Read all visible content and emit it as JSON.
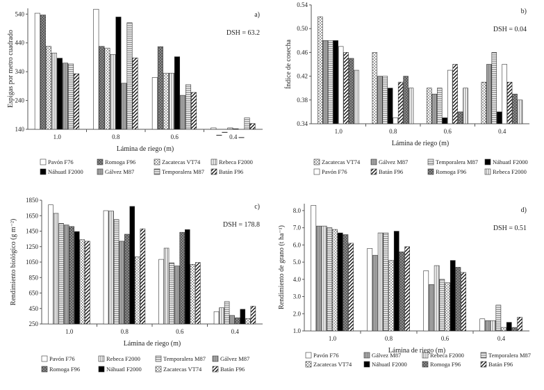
{
  "chart_data": [
    {
      "type": "bar",
      "panel_label": "a)",
      "dsh": "DSH = 63.2",
      "ylabel": "Espigas por metro cuadrado",
      "xlabel": "Lámina de riego (m)",
      "categories": [
        "1.0",
        "0.8",
        "0.6",
        "0.4"
      ],
      "ylim": [
        140,
        560
      ],
      "yticks": [
        "140",
        "240",
        "340",
        "440",
        "540"
      ],
      "series": [
        {
          "name": "Pavón F76",
          "values": [
            543,
            557,
            320,
            145
          ]
        },
        {
          "name": "Romoga F96",
          "values": [
            537,
            428,
            427,
            120
          ]
        },
        {
          "name": "Zacatecas VT74",
          "values": [
            428,
            422,
            335,
            130
          ]
        },
        {
          "name": "Rebeca F2000",
          "values": [
            405,
            400,
            335,
            145
          ]
        },
        {
          "name": "Náhuatl F2000",
          "values": [
            387,
            530,
            392,
            142
          ]
        },
        {
          "name": "Gálvez M87",
          "values": [
            370,
            300,
            258,
            112
          ]
        },
        {
          "name": "Temporalera M87",
          "values": [
            367,
            510,
            295,
            180
          ]
        },
        {
          "name": "Batán F96",
          "values": [
            333,
            388,
            268,
            160
          ]
        }
      ]
    },
    {
      "type": "bar",
      "panel_label": "b)",
      "dsh": "DSH = 0.04",
      "ylabel": "Índice de cosecha",
      "xlabel": "Lámina de riego (m)",
      "categories": [
        "1.0",
        "0.8",
        "0.6",
        "0.4"
      ],
      "ylim": [
        0.34,
        0.54
      ],
      "yticks": [
        "0.34",
        "0.38",
        "0.42",
        "0.46",
        "0.50",
        "0.54"
      ],
      "series": [
        {
          "name": "Zacatecas VT74",
          "values": [
            0.52,
            0.46,
            0.4,
            0.41
          ]
        },
        {
          "name": "Gálvez M87",
          "values": [
            0.48,
            0.42,
            0.39,
            0.44
          ]
        },
        {
          "name": "Temporalera M87",
          "values": [
            0.48,
            0.42,
            0.4,
            0.46
          ]
        },
        {
          "name": "Náhuatl F2000",
          "values": [
            0.48,
            0.4,
            0.35,
            0.36
          ]
        },
        {
          "name": "Pavón F76",
          "values": [
            0.47,
            0.35,
            0.43,
            0.44
          ]
        },
        {
          "name": "Batán F96",
          "values": [
            0.46,
            0.41,
            0.44,
            0.41
          ]
        },
        {
          "name": "Romoga F96",
          "values": [
            0.45,
            0.42,
            0.36,
            0.39
          ]
        },
        {
          "name": "Rebeca F2000",
          "values": [
            0.43,
            0.4,
            0.4,
            0.38
          ]
        }
      ]
    },
    {
      "type": "bar",
      "panel_label": "c)",
      "dsh": "DSH = 178.8",
      "ylabel": "Rendimiento biológico (g m⁻²)",
      "xlabel": "Lámina de riego (m)",
      "categories": [
        "1.0",
        "0.8",
        "0.6",
        "0.4"
      ],
      "ylim": [
        250,
        1850
      ],
      "yticks": [
        "250",
        "450",
        "650",
        "850",
        "1050",
        "1250",
        "1450",
        "1650",
        "1850"
      ],
      "series": [
        {
          "name": "Pavón F76",
          "values": [
            1790,
            1715,
            1085,
            410
          ]
        },
        {
          "name": "Rebeca F2000",
          "values": [
            1680,
            1710,
            1230,
            460
          ]
        },
        {
          "name": "Temporalera M87",
          "values": [
            1550,
            1600,
            1040,
            540
          ]
        },
        {
          "name": "Gálvez M87",
          "values": [
            1530,
            1320,
            1000,
            360
          ]
        },
        {
          "name": "Romoga F96",
          "values": [
            1510,
            1410,
            1435,
            330
          ]
        },
        {
          "name": "Náhuatl F2000",
          "values": [
            1445,
            1770,
            1470,
            440
          ]
        },
        {
          "name": "Zacatecas VT74",
          "values": [
            1340,
            1120,
            1020,
            320
          ]
        },
        {
          "name": "Batán F96",
          "values": [
            1320,
            1480,
            1045,
            480
          ]
        }
      ]
    },
    {
      "type": "bar",
      "panel_label": "d)",
      "dsh": "DSH = 0.51",
      "ylabel": "Rendimiento de grano (t ha⁻¹)",
      "xlabel": "Lámina de riego (m)",
      "categories": [
        "1.0",
        "0.8",
        "0.6",
        "0.4"
      ],
      "ylim": [
        1.0,
        8.4
      ],
      "yticks": [
        "1.0",
        "2.0",
        "3.0",
        "4.0",
        "5.0",
        "6.0",
        "7.0",
        "8.0"
      ],
      "series": [
        {
          "name": "Pavón F76",
          "values": [
            8.3,
            5.8,
            4.5,
            1.7
          ]
        },
        {
          "name": "Gálvez M87",
          "values": [
            7.1,
            5.4,
            3.7,
            1.6
          ]
        },
        {
          "name": "Rebeca F2000",
          "values": [
            7.1,
            6.7,
            4.8,
            1.6
          ]
        },
        {
          "name": "Temporalera M87",
          "values": [
            7.0,
            6.7,
            4.0,
            2.5
          ]
        },
        {
          "name": "Zacatecas VT74",
          "values": [
            6.9,
            5.1,
            3.8,
            1.2
          ]
        },
        {
          "name": "Náhuatl F2000",
          "values": [
            6.7,
            6.8,
            5.1,
            1.5
          ]
        },
        {
          "name": "Romoga F96",
          "values": [
            6.6,
            5.6,
            4.7,
            1.2
          ]
        },
        {
          "name": "Batán F96",
          "values": [
            6.1,
            5.9,
            4.4,
            1.8
          ]
        }
      ]
    }
  ],
  "legend_colors": {
    "Pavón F76": "#ffffff",
    "Romoga F96": "#7a7a7a",
    "Zacatecas VT74": "#ffffff",
    "Rebeca F2000": "#ffffff",
    "Náhuatl F2000": "#000000",
    "Gálvez M87": "#a8a8a8",
    "Temporalera M87": "#ffffff",
    "Batán F96": "#ffffff"
  }
}
